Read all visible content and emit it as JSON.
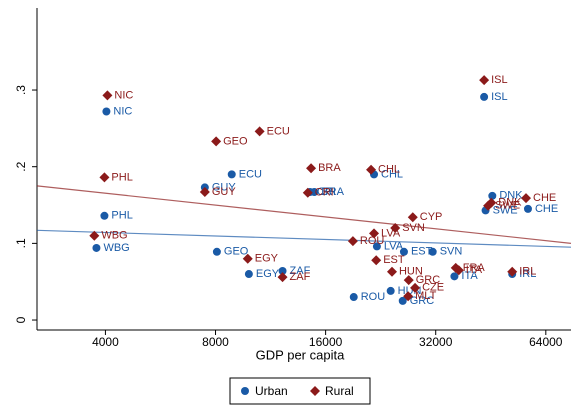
{
  "chart_data": {
    "type": "scatter",
    "x_label": "GDP per capita",
    "x_scale": "log",
    "xlim": [
      2600,
      75000
    ],
    "xticks": [
      4000,
      8000,
      16000,
      32000,
      64000
    ],
    "ylim": [
      -0.013,
      0.407
    ],
    "yticks": [
      {
        "value": 0,
        "label": "0"
      },
      {
        "value": 0.1,
        "label": ".1"
      },
      {
        "value": 0.2,
        "label": ".2"
      },
      {
        "value": 0.3,
        "label": ".3"
      }
    ],
    "legend": "bottom",
    "series": [
      {
        "name": "Urban",
        "color": "#1a5aa6",
        "marker": "circle",
        "labels": [
          "NIC",
          "ISL",
          "ECU",
          "CHL",
          "GUY",
          "PHL",
          "BRA",
          "CRI",
          "DNK",
          "CHE",
          "SWE",
          "WBG",
          "GEO",
          "LVA",
          "EST",
          "SVN",
          "EGY",
          "ZAF",
          "HUN",
          "ROU",
          "ITA",
          "IRL",
          "GRC"
        ],
        "x": [
          4025,
          43400,
          8860,
          21700,
          7480,
          3975,
          14900,
          14500,
          45700,
          57200,
          43800,
          3780,
          8070,
          22100,
          26200,
          31400,
          9870,
          12200,
          24100,
          19100,
          36000,
          51800,
          26000
        ],
        "values": [
          0.272,
          0.291,
          0.19,
          0.19,
          0.173,
          0.136,
          0.167,
          0.167,
          0.162,
          0.145,
          0.143,
          0.094,
          0.089,
          0.096,
          0.089,
          0.089,
          0.06,
          0.064,
          0.038,
          0.03,
          0.057,
          0.06,
          0.025
        ],
        "fit": {
          "x": [
            2600,
            75000
          ],
          "values": [
            0.117,
            0.095
          ]
        }
      },
      {
        "name": "Rural",
        "color": "#8b1a1a",
        "marker": "diamond",
        "labels": [
          "NIC",
          "ISL",
          "ECU",
          "GEO",
          "BRA",
          "CHL",
          "PHL",
          "GUY",
          "CRI",
          "CHE",
          "DNK",
          "SWE",
          "CYP",
          "SVN",
          "LVA",
          "ROU",
          "WBG",
          "EST",
          "EGY",
          "ZAF",
          "HUN",
          "GRC",
          "CZE",
          "MLT",
          "FRA",
          "ITA",
          "IRL"
        ],
        "x": [
          4050,
          43400,
          10560,
          8030,
          14600,
          21300,
          3975,
          7480,
          14300,
          56500,
          45400,
          44500,
          27700,
          24800,
          21700,
          19000,
          3730,
          22000,
          9800,
          12200,
          24300,
          27000,
          28100,
          26900,
          36300,
          37000,
          51800
        ],
        "values": [
          0.293,
          0.313,
          0.246,
          0.233,
          0.198,
          0.196,
          0.186,
          0.167,
          0.166,
          0.159,
          0.153,
          0.149,
          0.134,
          0.12,
          0.113,
          0.103,
          0.11,
          0.078,
          0.08,
          0.056,
          0.063,
          0.052,
          0.042,
          0.031,
          0.068,
          0.065,
          0.063
        ],
        "fit": {
          "x": [
            2600,
            75000
          ],
          "values": [
            0.175,
            0.1
          ]
        }
      }
    ]
  }
}
